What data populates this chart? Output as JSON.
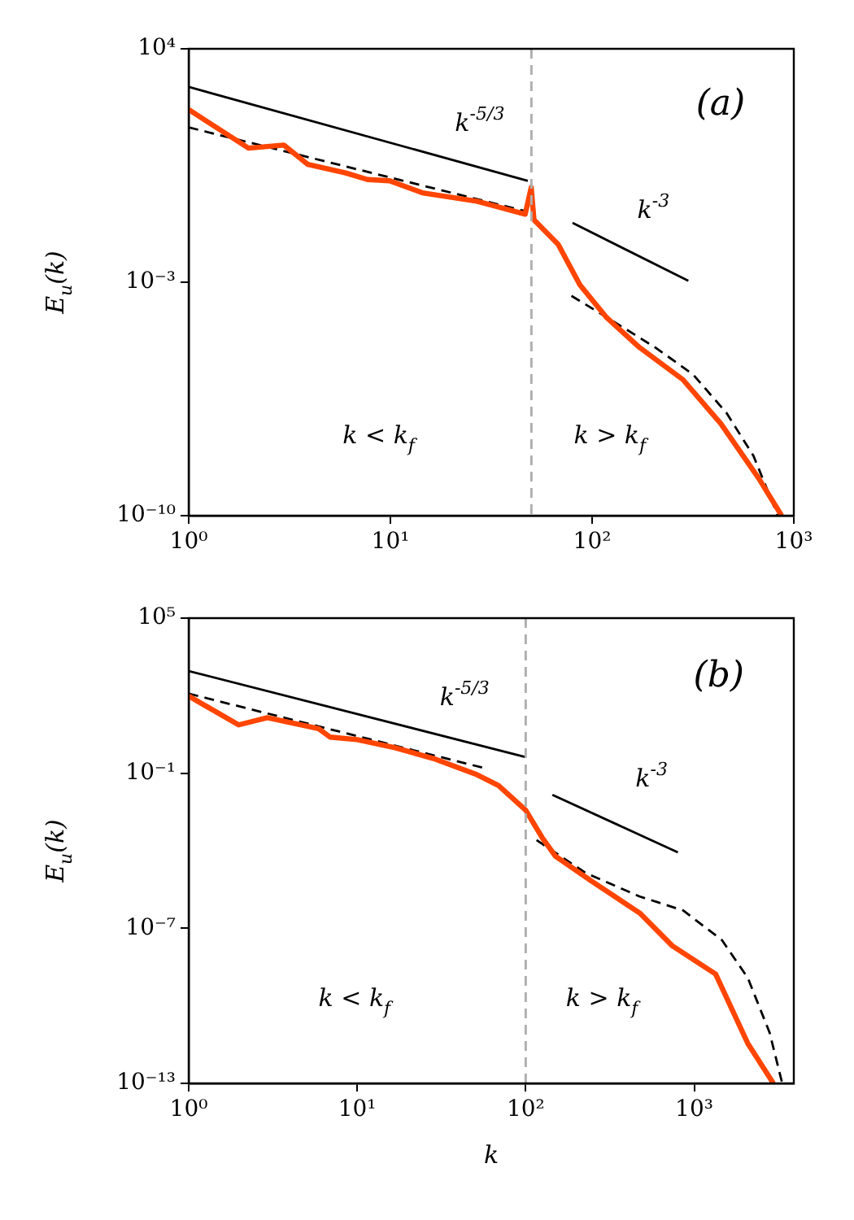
{
  "chart_data": [
    {
      "type": "line",
      "ylabel": "E$_{u}$(k)",
      "log": "xy",
      "marker": "none",
      "xlim": [
        1,
        1000
      ],
      "ylim": [
        1e-10,
        10000
      ],
      "xticks": [
        {
          "value": 1,
          "label": "10⁰"
        },
        {
          "value": 10,
          "label": "10¹"
        },
        {
          "value": 100,
          "label": "10²"
        },
        {
          "value": 1000,
          "label": "10³"
        }
      ],
      "yticks": [
        {
          "value": 1e-10,
          "label": "10⁻¹⁰"
        },
        {
          "value": 0.001,
          "label": "10⁻³"
        },
        {
          "value": 10000,
          "label": "10⁴"
        }
      ],
      "series": [
        {
          "type": "line",
          "color": "#ff4500",
          "line_style": "solid",
          "x": [
            1,
            1.98,
            2.96,
            3.9,
            6,
            7.7,
            9.9,
            14.4,
            26.8,
            46.6,
            49.9,
            51.5,
            67.9,
            87,
            118,
            172,
            282,
            434,
            671,
            870
          ],
          "values": [
            150,
            10.5,
            13,
            3.4,
            1.9,
            1.2,
            1.1,
            0.48,
            0.27,
            0.11,
            0.7,
            0.074,
            0.0137,
            0.00083,
            8.7e-05,
            1.1e-05,
            1.2e-06,
            5.8e-08,
            1.3e-09,
            1e-10
          ]
        },
        {
          "type": "line",
          "color": "#000000",
          "line_style": "dashed",
          "x": [
            1,
            48
          ],
          "values": [
            44,
            0.13
          ]
        },
        {
          "type": "line",
          "color": "#000000",
          "line_style": "dashed",
          "x": [
            79,
            125,
            206,
            317,
            464,
            631,
            833
          ],
          "values": [
            0.00039,
            7.2e-05,
            1.1e-05,
            1.7e-06,
            1.2e-07,
            6.2e-09,
            1e-10
          ]
        },
        {
          "type": "line",
          "color": "#000000",
          "line_style": "solid",
          "x": [
            1,
            48
          ],
          "values": [
            720,
            1.1
          ]
        },
        {
          "type": "line",
          "color": "#000000",
          "line_style": "solid",
          "x": [
            80,
            300
          ],
          "values": [
            0.06,
            0.0011
          ]
        }
      ],
      "ref_lines": [
        {
          "axis": "x",
          "value": 50,
          "color": "#b0b0b0",
          "line_style": "dashed"
        }
      ],
      "annotations": [
        "(a)",
        "k$^{-5/3}$",
        "k$^{-3}$",
        "k < k$_{f}$",
        "k > k$_{f}$"
      ]
    },
    {
      "type": "line",
      "xlabel": "k",
      "ylabel": "E$_{u}$(k)",
      "log": "xy",
      "marker": "none",
      "xlim": [
        1,
        3900
      ],
      "ylim": [
        1e-13,
        100000
      ],
      "xticks": [
        {
          "value": 1,
          "label": "10⁰"
        },
        {
          "value": 10,
          "label": "10¹"
        },
        {
          "value": 100,
          "label": "10²"
        },
        {
          "value": 1000,
          "label": "10³"
        }
      ],
      "yticks": [
        {
          "value": 1e-13,
          "label": "10⁻¹³"
        },
        {
          "value": 1e-07,
          "label": "10⁻⁷"
        },
        {
          "value": 0.1,
          "label": "10⁻¹"
        },
        {
          "value": 100000,
          "label": "10⁵"
        }
      ],
      "series": [
        {
          "type": "line",
          "color": "#ff4500",
          "line_style": "solid",
          "x": [
            1,
            1.98,
            2.93,
            5.9,
            6.9,
            10,
            16.8,
            28.3,
            51.5,
            69,
            100,
            125,
            150,
            243,
            475,
            741,
            1340,
            2080,
            2950
          ],
          "values": [
            96,
            7.4,
            14,
            5.3,
            2.5,
            2,
            0.97,
            0.37,
            0.087,
            0.033,
            0.0037,
            0.00033,
            6.2e-05,
            7e-06,
            3.9e-07,
            2.1e-08,
            1.7e-09,
            3.5e-12,
            1e-13
          ]
        },
        {
          "type": "line",
          "color": "#000000",
          "line_style": "dashed",
          "x": [
            1,
            58.6
          ],
          "values": [
            120,
            0.15
          ]
        },
        {
          "type": "line",
          "color": "#000000",
          "line_style": "dashed",
          "x": [
            116,
            226,
            475,
            860,
            1460,
            2080,
            2800,
            3330
          ],
          "values": [
            0.00026,
            1.4e-05,
            1.7e-06,
            4.9e-07,
            3.5e-08,
            1.2e-09,
            9.3e-12,
            1e-13
          ]
        },
        {
          "type": "line",
          "color": "#000000",
          "line_style": "solid",
          "x": [
            1,
            100
          ],
          "values": [
            900,
            0.42
          ]
        },
        {
          "type": "line",
          "color": "#000000",
          "line_style": "solid",
          "x": [
            144,
            800
          ],
          "values": [
            0.0145,
            8.7e-05
          ]
        }
      ],
      "ref_lines": [
        {
          "axis": "x",
          "value": 100,
          "color": "#b0b0b0",
          "line_style": "dashed"
        }
      ],
      "annotations": [
        "(b)",
        "k$^{-5/3}$",
        "k$^{-3}$",
        "k < k$_{f}$",
        "k > k$_{f}$"
      ]
    }
  ]
}
